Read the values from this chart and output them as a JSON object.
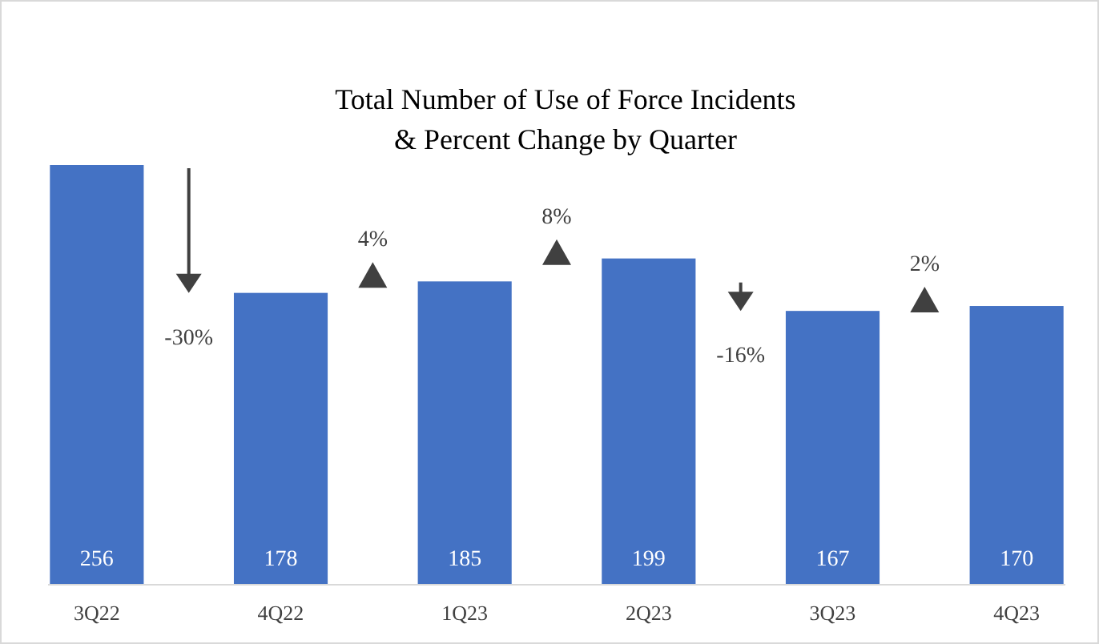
{
  "chart_data": {
    "type": "bar",
    "title": "Total Number of Use of Force Incidents\n& Percent Change by Quarter",
    "categories": [
      "3Q22",
      "4Q22",
      "1Q23",
      "2Q23",
      "3Q23",
      "4Q23"
    ],
    "values": [
      256,
      178,
      185,
      199,
      167,
      170
    ],
    "color": "#4472c4",
    "data_labels": true,
    "annotations": [
      "-30%",
      "4%",
      "8%",
      "-16%",
      "2%"
    ]
  }
}
